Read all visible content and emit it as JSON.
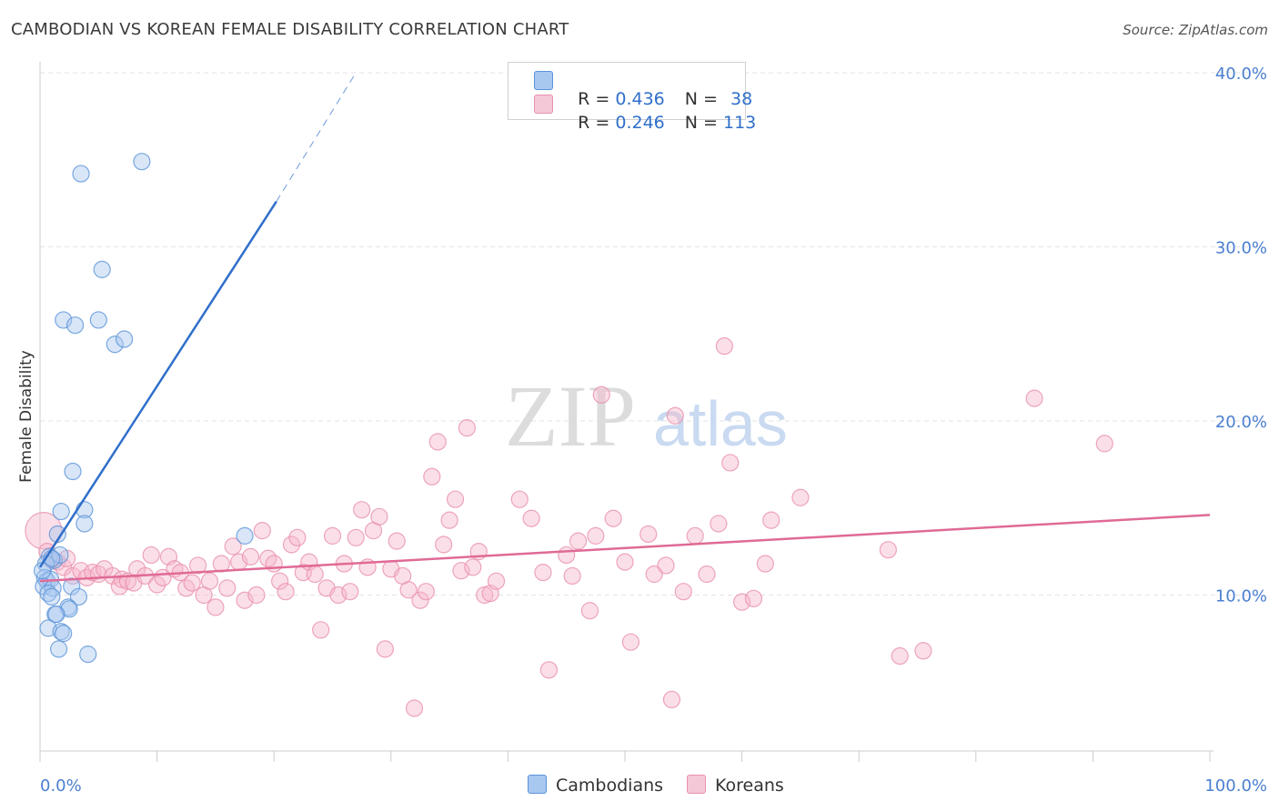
{
  "title": "CAMBODIAN VS KOREAN FEMALE DISABILITY CORRELATION CHART",
  "source": "Source: ZipAtlas.com",
  "watermark": {
    "zip": "ZIP",
    "atlas": "atlas"
  },
  "legend": {
    "rows": [
      {
        "r_label": "R = ",
        "r_value": "0.436",
        "n_label": "N = ",
        "n_value": "38"
      },
      {
        "r_label": "R = ",
        "r_value": "0.246",
        "n_label": "N = ",
        "n_value": "113"
      }
    ]
  },
  "bottom_legend": {
    "cambodians": "Cambodians",
    "koreans": "Koreans"
  },
  "colors": {
    "blue_fill": "#a9c8f0",
    "blue_stroke": "#5b93d8",
    "blue_line": "#2f6fca",
    "pink_fill": "#f6b9cd",
    "pink_stroke": "#e890ac",
    "pink_line": "#e06a96",
    "grid": "#e3e3e3",
    "tick_label": "#4a7fd0"
  },
  "chart_data": {
    "type": "scatter",
    "title": "CAMBODIAN VS KOREAN FEMALE DISABILITY CORRELATION CHART",
    "xlabel": "",
    "ylabel": "Female Disability",
    "xlim": [
      0,
      100
    ],
    "ylim": [
      0,
      40
    ],
    "x_tick_labels": [
      "0.0%",
      "100.0%"
    ],
    "y_ticks": [
      10,
      20,
      30,
      40
    ],
    "y_tick_labels": [
      "10.0%",
      "20.0%",
      "30.0%",
      "40.0%"
    ],
    "grid": true,
    "series": [
      {
        "name": "Cambodians",
        "r": 0.436,
        "n": 38,
        "points": [
          [
            3.5,
            34.2
          ],
          [
            8.7,
            34.9
          ],
          [
            5.3,
            28.7
          ],
          [
            2.0,
            25.8
          ],
          [
            3.0,
            25.5
          ],
          [
            5.0,
            25.8
          ],
          [
            6.4,
            24.4
          ],
          [
            7.2,
            24.7
          ],
          [
            2.8,
            17.1
          ],
          [
            1.8,
            14.8
          ],
          [
            3.8,
            14.9
          ],
          [
            3.8,
            14.1
          ],
          [
            1.5,
            13.5
          ],
          [
            17.5,
            13.4
          ],
          [
            0.8,
            12.2
          ],
          [
            1.2,
            12.0
          ],
          [
            1.7,
            12.3
          ],
          [
            0.5,
            11.8
          ],
          [
            0.4,
            11.0
          ],
          [
            0.6,
            10.8
          ],
          [
            0.9,
            10.9
          ],
          [
            0.3,
            10.5
          ],
          [
            1.1,
            10.4
          ],
          [
            0.7,
            10.1
          ],
          [
            2.7,
            10.5
          ],
          [
            1.0,
            9.9
          ],
          [
            3.3,
            9.9
          ],
          [
            2.4,
            9.3
          ],
          [
            2.5,
            9.2
          ],
          [
            1.3,
            8.9
          ],
          [
            1.4,
            8.9
          ],
          [
            0.7,
            8.1
          ],
          [
            1.8,
            7.9
          ],
          [
            2.0,
            7.8
          ],
          [
            1.6,
            6.9
          ],
          [
            4.1,
            6.6
          ],
          [
            0.2,
            11.4
          ],
          [
            1.0,
            12.1
          ]
        ],
        "trend": {
          "x": [
            0,
            20.2
          ],
          "y": [
            11.6,
            32.6
          ],
          "dashed_to": {
            "x": [
              20.2,
              27
            ],
            "y": [
              32.6,
              40
            ]
          }
        }
      },
      {
        "name": "Koreans",
        "r": 0.246,
        "n": 113,
        "points": [
          [
            0.3,
            13.7
          ],
          [
            0.6,
            12.5
          ],
          [
            1.0,
            12.0
          ],
          [
            1.5,
            11.9
          ],
          [
            2.0,
            11.6
          ],
          [
            2.8,
            11.1
          ],
          [
            3.5,
            11.4
          ],
          [
            4.0,
            11.0
          ],
          [
            4.5,
            11.3
          ],
          [
            5.0,
            11.2
          ],
          [
            5.5,
            11.5
          ],
          [
            6.2,
            11.1
          ],
          [
            6.8,
            10.5
          ],
          [
            7.0,
            10.9
          ],
          [
            7.5,
            10.8
          ],
          [
            8.0,
            10.7
          ],
          [
            8.3,
            11.5
          ],
          [
            9.0,
            11.1
          ],
          [
            9.5,
            12.3
          ],
          [
            10.0,
            10.6
          ],
          [
            10.5,
            11.0
          ],
          [
            11.0,
            12.2
          ],
          [
            11.5,
            11.5
          ],
          [
            12.0,
            11.3
          ],
          [
            12.5,
            10.4
          ],
          [
            13.0,
            10.7
          ],
          [
            13.5,
            11.7
          ],
          [
            14.0,
            10.0
          ],
          [
            14.5,
            10.8
          ],
          [
            15.0,
            9.3
          ],
          [
            15.5,
            11.8
          ],
          [
            16.0,
            10.4
          ],
          [
            16.5,
            12.8
          ],
          [
            17.0,
            11.9
          ],
          [
            17.5,
            9.7
          ],
          [
            18.0,
            12.2
          ],
          [
            18.5,
            10.0
          ],
          [
            19.0,
            13.7
          ],
          [
            19.5,
            12.1
          ],
          [
            20.0,
            11.8
          ],
          [
            20.5,
            10.8
          ],
          [
            21.0,
            10.2
          ],
          [
            21.5,
            12.9
          ],
          [
            22.0,
            13.3
          ],
          [
            22.5,
            11.3
          ],
          [
            23.0,
            11.9
          ],
          [
            23.5,
            11.2
          ],
          [
            24.0,
            8.0
          ],
          [
            24.5,
            10.4
          ],
          [
            25.0,
            13.4
          ],
          [
            25.5,
            10.0
          ],
          [
            26.0,
            11.8
          ],
          [
            26.5,
            10.2
          ],
          [
            27.0,
            13.3
          ],
          [
            27.5,
            14.9
          ],
          [
            28.0,
            11.6
          ],
          [
            28.5,
            13.7
          ],
          [
            29.0,
            14.5
          ],
          [
            29.5,
            6.9
          ],
          [
            30.0,
            11.5
          ],
          [
            30.5,
            13.1
          ],
          [
            31.0,
            11.1
          ],
          [
            31.5,
            10.3
          ],
          [
            32.0,
            3.5
          ],
          [
            32.5,
            9.7
          ],
          [
            33.0,
            10.2
          ],
          [
            33.5,
            16.8
          ],
          [
            34.0,
            18.8
          ],
          [
            34.5,
            12.9
          ],
          [
            35.0,
            14.3
          ],
          [
            35.5,
            15.5
          ],
          [
            36.0,
            11.4
          ],
          [
            36.5,
            19.6
          ],
          [
            37.0,
            11.6
          ],
          [
            37.5,
            12.5
          ],
          [
            38.0,
            10.0
          ],
          [
            38.5,
            10.1
          ],
          [
            39.0,
            10.8
          ],
          [
            41.0,
            15.5
          ],
          [
            42.0,
            14.4
          ],
          [
            43.0,
            11.3
          ],
          [
            43.5,
            5.7
          ],
          [
            45.0,
            12.3
          ],
          [
            45.5,
            11.1
          ],
          [
            46.0,
            13.1
          ],
          [
            47.0,
            9.1
          ],
          [
            47.5,
            13.4
          ],
          [
            48.0,
            21.5
          ],
          [
            49.0,
            14.4
          ],
          [
            50.0,
            11.9
          ],
          [
            50.5,
            7.3
          ],
          [
            52.0,
            13.5
          ],
          [
            52.5,
            11.2
          ],
          [
            53.5,
            11.7
          ],
          [
            54.0,
            4.0
          ],
          [
            54.3,
            20.3
          ],
          [
            55.0,
            10.2
          ],
          [
            56.0,
            13.4
          ],
          [
            57.0,
            11.2
          ],
          [
            58.0,
            14.1
          ],
          [
            58.5,
            24.3
          ],
          [
            59.0,
            17.6
          ],
          [
            60.0,
            9.6
          ],
          [
            61.0,
            9.8
          ],
          [
            62.0,
            11.8
          ],
          [
            62.5,
            14.3
          ],
          [
            65.0,
            15.6
          ],
          [
            72.5,
            12.6
          ],
          [
            73.5,
            6.5
          ],
          [
            75.5,
            6.8
          ],
          [
            85.0,
            21.3
          ],
          [
            91.0,
            18.7
          ],
          [
            2.3,
            12.1
          ]
        ],
        "trend": {
          "x": [
            0,
            100
          ],
          "y": [
            10.8,
            14.6
          ]
        }
      }
    ]
  }
}
